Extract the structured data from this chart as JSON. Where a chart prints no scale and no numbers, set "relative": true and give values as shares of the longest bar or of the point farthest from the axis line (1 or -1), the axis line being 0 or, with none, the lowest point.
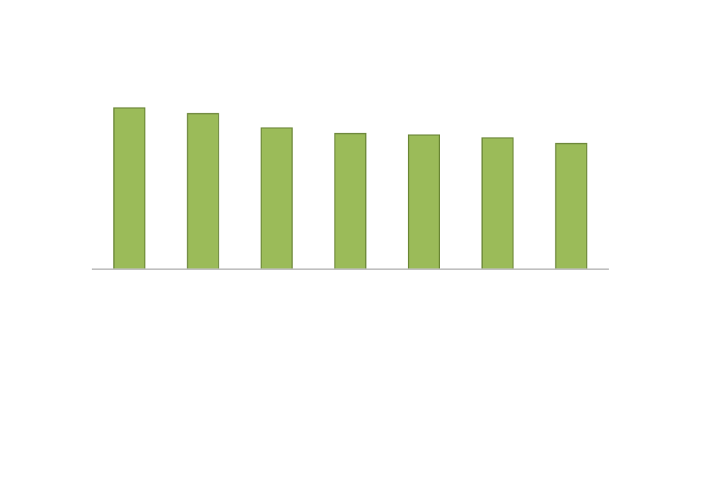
{
  "chart_data": {
    "type": "bar",
    "relative": true,
    "categories": [
      null,
      null,
      null,
      null,
      null,
      null,
      null
    ],
    "values": [
      1,
      0.965,
      0.876,
      0.841,
      0.832,
      0.814,
      0.779
    ],
    "color": "#9bbb59"
  }
}
